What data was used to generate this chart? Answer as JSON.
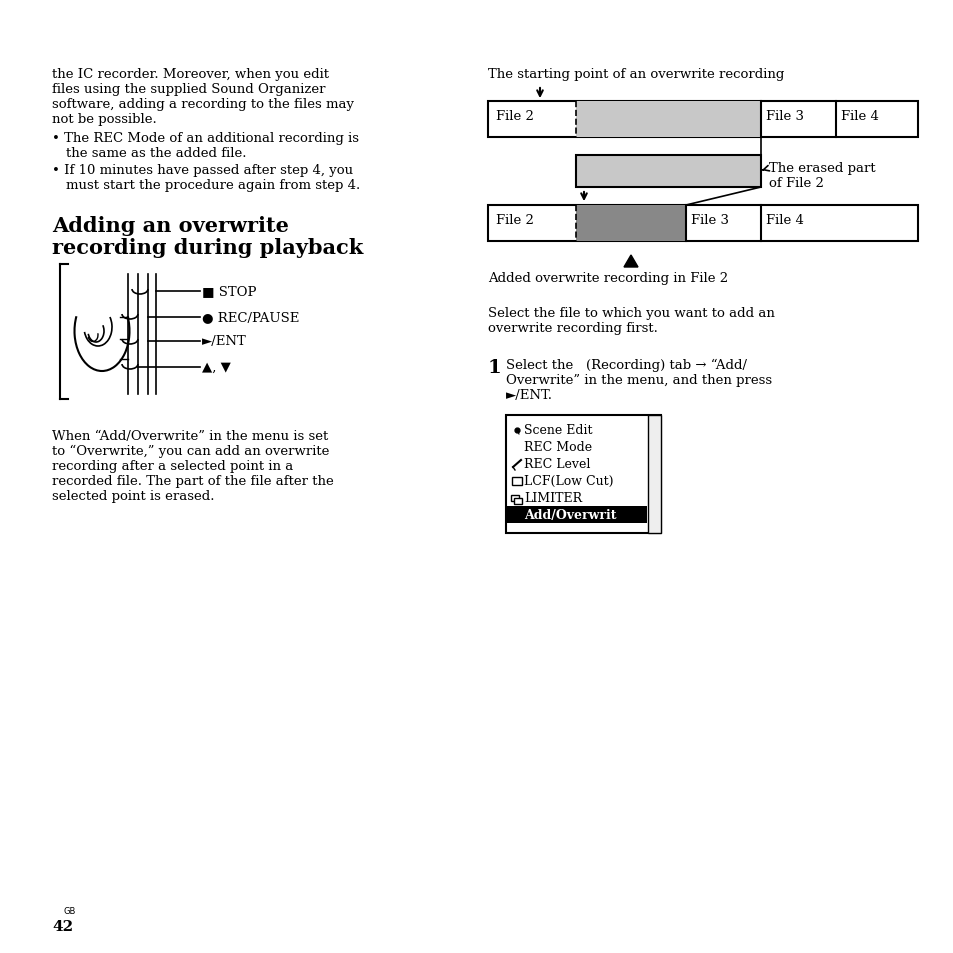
{
  "bg_color": "#ffffff",
  "top_text_left": [
    "the IC recorder. Moreover, when you edit",
    "files using the supplied Sound Organizer",
    "software, adding a recording to the files may",
    "not be possible."
  ],
  "bullet1_line1": "The REC Mode of an additional recording is",
  "bullet1_line2": "the same as the added file.",
  "bullet2_line1": "If 10 minutes have passed after step 4, you",
  "bullet2_line2": "must start the procedure again from step 4.",
  "section_title_line1": "Adding an overwrite",
  "section_title_line2": "recording during playback",
  "body_text": [
    "When “Add/Overwrite” in the menu is set",
    "to “Overwrite,” you can add an overwrite",
    "recording after a selected point in a",
    "recorded file. The part of the file after the",
    "selected point is erased."
  ],
  "right_caption_top": "The starting point of an overwrite recording",
  "right_caption_bottom": "Added overwrite recording in File 2",
  "erased_label1": "The erased part",
  "erased_label2": "of File 2",
  "stop_label": "STOP",
  "rec_pause_label": "REC/PAUSE",
  "ent_label": "/ENT",
  "select_line1": "Select the file to which you want to add an",
  "select_line2": "overwrite recording first.",
  "step1_prefix": "1",
  "step1_line1": "Select the   (Recording) tab → “Add/",
  "step1_line2": "Overwrite” in the menu, and then press",
  "step1_line3": "►/ENT.",
  "menu_items": [
    "Scene Edit",
    "REC Mode",
    "REC Level",
    "LCF(Low Cut)",
    "LIMITER",
    "Add/Overwrit"
  ],
  "light_gray": "#c8c8c8",
  "dark_gray": "#888888",
  "page_num": "42"
}
